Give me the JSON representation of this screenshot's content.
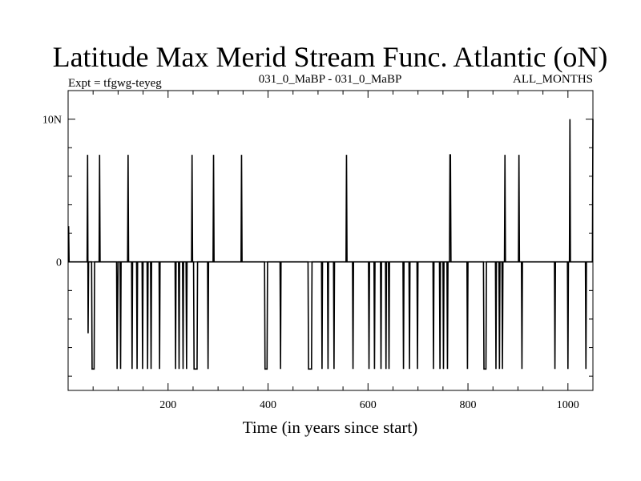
{
  "chart_data": {
    "type": "line",
    "title": "Latitude Max Merid Stream Func. Atlantic (oN)",
    "subtitle_left": "Expt = tfgwg-teyeg",
    "subtitle_center": "031_0_MaBP - 031_0_MaBP",
    "subtitle_right": "ALL_MONTHS",
    "xlabel": "Time (in years since start)",
    "ylabel": "",
    "xlim": [
      0,
      1050
    ],
    "ylim": [
      -9,
      12
    ],
    "x_ticks": [
      200,
      400,
      600,
      800,
      1000
    ],
    "x_tick_labels": [
      "200",
      "400",
      "600",
      "800",
      "1000"
    ],
    "y_ticks": [
      0,
      10
    ],
    "y_tick_labels": [
      "0",
      "10N"
    ],
    "grid": false,
    "series": [
      {
        "color": "#000000",
        "points": [
          [
            1,
            2.5
          ],
          [
            2,
            0
          ],
          [
            38,
            0
          ],
          [
            39,
            7.5
          ],
          [
            40,
            -5
          ],
          [
            41,
            0
          ],
          [
            47,
            0
          ],
          [
            48,
            -7.5
          ],
          [
            52,
            -7.5
          ],
          [
            53,
            0
          ],
          [
            62,
            0
          ],
          [
            63,
            7.5
          ],
          [
            64,
            0
          ],
          [
            97,
            0
          ],
          [
            98,
            -7.5
          ],
          [
            100,
            0
          ],
          [
            104,
            0
          ],
          [
            105,
            -7.5
          ],
          [
            106,
            0
          ],
          [
            119,
            0
          ],
          [
            120,
            7.5
          ],
          [
            121,
            0
          ],
          [
            127,
            0
          ],
          [
            128,
            -7.5
          ],
          [
            129,
            0
          ],
          [
            137,
            0
          ],
          [
            138,
            -7.5
          ],
          [
            139,
            0
          ],
          [
            148,
            0
          ],
          [
            149,
            -7.5
          ],
          [
            150,
            0
          ],
          [
            158,
            0
          ],
          [
            159,
            -7.5
          ],
          [
            160,
            0
          ],
          [
            165,
            0
          ],
          [
            166,
            -7.5
          ],
          [
            167,
            0
          ],
          [
            182,
            0
          ],
          [
            183,
            -7.5
          ],
          [
            184,
            0
          ],
          [
            214,
            0
          ],
          [
            215,
            -7.5
          ],
          [
            216,
            0
          ],
          [
            221,
            0
          ],
          [
            222,
            -7.5
          ],
          [
            223,
            0
          ],
          [
            229,
            0
          ],
          [
            230,
            -7.5
          ],
          [
            231,
            0
          ],
          [
            236,
            0
          ],
          [
            237,
            -7.5
          ],
          [
            238,
            0
          ],
          [
            247,
            0
          ],
          [
            248,
            7.5
          ],
          [
            249,
            0
          ],
          [
            251,
            0
          ],
          [
            252,
            -7.5
          ],
          [
            258,
            -7.5
          ],
          [
            259,
            0
          ],
          [
            279,
            0
          ],
          [
            280,
            -7.5
          ],
          [
            281,
            0
          ],
          [
            290,
            0
          ],
          [
            291,
            7.5
          ],
          [
            292,
            0
          ],
          [
            346,
            0
          ],
          [
            347,
            7.5
          ],
          [
            348,
            0
          ],
          [
            393,
            0
          ],
          [
            394,
            -7.5
          ],
          [
            398,
            -7.5
          ],
          [
            399,
            0
          ],
          [
            424,
            0
          ],
          [
            425,
            -7.5
          ],
          [
            426,
            0
          ],
          [
            480,
            0
          ],
          [
            481,
            -7.5
          ],
          [
            487,
            -7.5
          ],
          [
            488,
            0
          ],
          [
            507,
            0
          ],
          [
            508,
            -7.5
          ],
          [
            509,
            0
          ],
          [
            519,
            0
          ],
          [
            520,
            -7.5
          ],
          [
            521,
            0
          ],
          [
            531,
            0
          ],
          [
            532,
            -7.5
          ],
          [
            533,
            0
          ],
          [
            556,
            0
          ],
          [
            557,
            7.5
          ],
          [
            558,
            0
          ],
          [
            569,
            0
          ],
          [
            570,
            -7.5
          ],
          [
            571,
            0
          ],
          [
            601,
            0
          ],
          [
            602,
            -7.5
          ],
          [
            603,
            0
          ],
          [
            612,
            0
          ],
          [
            613,
            -7.5
          ],
          [
            614,
            0
          ],
          [
            625,
            0
          ],
          [
            626,
            -7.5
          ],
          [
            627,
            0
          ],
          [
            635,
            0
          ],
          [
            636,
            -7.5
          ],
          [
            637,
            0
          ],
          [
            641,
            0
          ],
          [
            642,
            -7.5
          ],
          [
            643,
            0
          ],
          [
            670,
            0
          ],
          [
            671,
            -7.5
          ],
          [
            672,
            0
          ],
          [
            682,
            0
          ],
          [
            683,
            -7.5
          ],
          [
            684,
            0
          ],
          [
            698,
            0
          ],
          [
            699,
            -7.5
          ],
          [
            700,
            0
          ],
          [
            730,
            0
          ],
          [
            731,
            -7.5
          ],
          [
            732,
            0
          ],
          [
            743,
            0
          ],
          [
            744,
            -7.5
          ],
          [
            745,
            0
          ],
          [
            750,
            0
          ],
          [
            751,
            -7.5
          ],
          [
            752,
            0
          ],
          [
            758,
            0
          ],
          [
            759,
            -7.5
          ],
          [
            760,
            0
          ],
          [
            763,
            0
          ],
          [
            764,
            7.5
          ],
          [
            765,
            7.5
          ],
          [
            766,
            0
          ],
          [
            798,
            0
          ],
          [
            799,
            -7.5
          ],
          [
            800,
            0
          ],
          [
            831,
            0
          ],
          [
            832,
            -7.5
          ],
          [
            836,
            -7.5
          ],
          [
            837,
            0
          ],
          [
            855,
            0
          ],
          [
            856,
            -7.5
          ],
          [
            857,
            0
          ],
          [
            862,
            0
          ],
          [
            863,
            -7.5
          ],
          [
            864,
            0
          ],
          [
            868,
            0
          ],
          [
            869,
            -7.5
          ],
          [
            870,
            0
          ],
          [
            873,
            0
          ],
          [
            874,
            7.5
          ],
          [
            875,
            0
          ],
          [
            901,
            0
          ],
          [
            902,
            7.5
          ],
          [
            903,
            0
          ],
          [
            907,
            0
          ],
          [
            908,
            -7.5
          ],
          [
            909,
            0
          ],
          [
            973,
            0
          ],
          [
            974,
            -7.5
          ],
          [
            975,
            0
          ],
          [
            999,
            0
          ],
          [
            1000,
            -7.5
          ],
          [
            1001,
            0
          ],
          [
            1003,
            0
          ],
          [
            1004,
            10
          ],
          [
            1005,
            0
          ],
          [
            1035,
            0
          ],
          [
            1036,
            -7.5
          ],
          [
            1037,
            0
          ],
          [
            1049,
            0
          ],
          [
            1050,
            10
          ]
        ]
      }
    ]
  }
}
